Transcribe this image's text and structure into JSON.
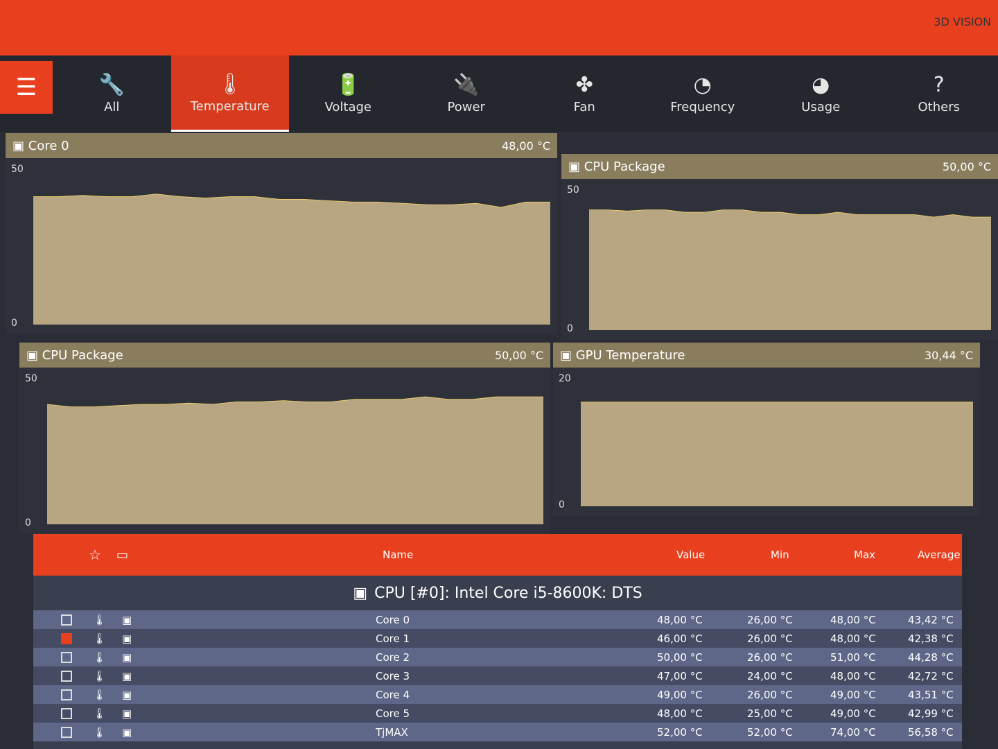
{
  "brand": "3D VISION",
  "tabs": [
    {
      "label": "All",
      "icon": "wrench-icon"
    },
    {
      "label": "Temperature",
      "icon": "thermometer-icon",
      "active": true
    },
    {
      "label": "Voltage",
      "icon": "battery-icon"
    },
    {
      "label": "Power",
      "icon": "plug-icon"
    },
    {
      "label": "Fan",
      "icon": "fan-icon"
    },
    {
      "label": "Frequency",
      "icon": "gauge-icon"
    },
    {
      "label": "Usage",
      "icon": "speedometer-icon"
    },
    {
      "label": "Others",
      "icon": "question-icon"
    }
  ],
  "panels": [
    {
      "title": "Core 0",
      "value": "48,00 °C",
      "ymax": "50",
      "ymin": "0",
      "series": [
        48,
        48,
        48.5,
        48,
        48,
        49,
        48,
        47.5,
        48,
        48,
        47,
        47,
        46.5,
        46,
        46,
        45.5,
        45,
        45,
        45.5,
        44,
        46,
        46
      ]
    },
    {
      "title": "CPU Package",
      "value": "50,00 °C",
      "ymax": "50",
      "ymin": "0",
      "series": [
        50,
        50,
        49.5,
        50,
        50,
        49,
        49,
        50,
        50,
        49,
        49,
        48,
        48,
        49,
        48,
        48,
        48,
        48,
        47,
        48,
        47,
        47
      ]
    },
    {
      "title": "CPU Package",
      "value": "50,00 °C",
      "ymax": "50",
      "ymin": "0",
      "series": [
        48,
        47,
        47,
        47.5,
        48,
        48,
        48.5,
        48,
        49,
        49,
        49.5,
        49,
        49,
        50,
        50,
        50,
        51,
        50,
        50,
        51,
        51,
        51
      ]
    },
    {
      "title": "GPU Temperature",
      "value": "30,44 °C",
      "ymax": "20",
      "ymin": "0",
      "ymid": "20",
      "series": [
        30.4,
        30.4,
        30.4,
        30.4,
        30.4,
        30.4,
        30.4,
        30.4,
        30.4,
        30.4,
        30.4,
        30.4,
        30.4,
        30.4,
        30.4,
        30.4,
        30.4,
        30.4,
        30.4,
        30.4,
        30.4,
        30.4
      ]
    }
  ],
  "table": {
    "headers": {
      "name": "Name",
      "value": "Value",
      "min": "Min",
      "max": "Max",
      "average": "Average"
    },
    "group": "CPU [#0]: Intel Core i5-8600K: DTS",
    "rows": [
      {
        "name": "Core 0",
        "value": "48,00 °C",
        "min": "26,00 °C",
        "max": "48,00 °C",
        "avg": "43,42 °C",
        "checked": false
      },
      {
        "name": "Core 1",
        "value": "46,00 °C",
        "min": "26,00 °C",
        "max": "48,00 °C",
        "avg": "42,38 °C",
        "checked": true
      },
      {
        "name": "Core 2",
        "value": "50,00 °C",
        "min": "26,00 °C",
        "max": "51,00 °C",
        "avg": "44,28 °C",
        "checked": false
      },
      {
        "name": "Core 3",
        "value": "47,00 °C",
        "min": "24,00 °C",
        "max": "48,00 °C",
        "avg": "42,72 °C",
        "checked": false
      },
      {
        "name": "Core 4",
        "value": "49,00 °C",
        "min": "26,00 °C",
        "max": "49,00 °C",
        "avg": "43,51 °C",
        "checked": false
      },
      {
        "name": "Core 5",
        "value": "48,00 °C",
        "min": "25,00 °C",
        "max": "49,00 °C",
        "avg": "42,99 °C",
        "checked": false
      },
      {
        "name": "TjMAX",
        "value": "52,00 °C",
        "min": "52,00 °C",
        "max": "74,00 °C",
        "avg": "56,58 °C",
        "checked": false
      }
    ]
  }
}
